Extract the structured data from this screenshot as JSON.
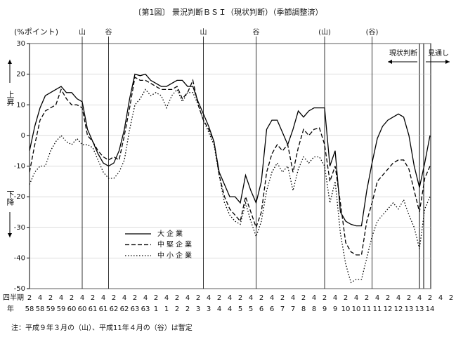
{
  "chart_data": {
    "type": "line",
    "title": "〔第1図〕 景況判断ＢＳＩ（現状判断）（季節調整済）",
    "y_label": "(%ポイント)",
    "up_label": "上昇",
    "down_label": "下降",
    "quarter_row_label": "四半期",
    "year_row_label": "年",
    "current_label": "現状判断",
    "forecast_label": "見通し",
    "note": "注：平成９年３月の（山）、平成11年４月の（谷）は暫定",
    "quarter_labels": [
      "2",
      null,
      "4",
      null,
      "2",
      null,
      "4",
      null,
      "2",
      null,
      "4",
      null,
      "2",
      null,
      "4",
      null,
      "2",
      null,
      "4",
      null,
      "2",
      null,
      "4",
      null,
      "2",
      null,
      "4",
      null,
      "2",
      null,
      "4",
      null,
      "2",
      null,
      "4",
      null,
      "2",
      null,
      "4",
      null,
      "2",
      null,
      "4",
      null,
      "2",
      null,
      "4",
      null,
      "2",
      null,
      "4",
      null,
      "2",
      null,
      "4",
      null,
      "2",
      null,
      "4",
      null,
      "2",
      null,
      "4",
      null,
      "2",
      null,
      "4",
      null,
      "2",
      null,
      "4",
      null,
      "2",
      null,
      "4",
      null,
      "2",
      null,
      "4",
      null,
      "2"
    ],
    "year_labels": [
      "58",
      null,
      "58",
      null,
      "59",
      null,
      "59",
      null,
      "60",
      null,
      "60",
      null,
      "61",
      null,
      "61",
      null,
      "62",
      null,
      "62",
      null,
      "63",
      null,
      "63",
      null,
      "1",
      null,
      "1",
      null,
      "2",
      null,
      "2",
      null,
      "3",
      null,
      "3",
      null,
      "4",
      null,
      "4",
      null,
      "5",
      null,
      "5",
      null,
      "6",
      null,
      "6",
      null,
      "7",
      null,
      "7",
      null,
      "8",
      null,
      "8",
      null,
      "9",
      null,
      "9",
      null,
      "10",
      null,
      "10",
      null,
      "11",
      null,
      "11",
      null,
      "12",
      null,
      "12",
      null,
      "13",
      null,
      "13",
      null,
      "14"
    ],
    "annotations": [
      {
        "text": "山",
        "x": 10
      },
      {
        "text": "谷",
        "x": 15
      },
      {
        "text": "山",
        "x": 33
      },
      {
        "text": "谷",
        "x": 43
      },
      {
        "text": "(山)",
        "x": 56
      },
      {
        "text": "(谷)",
        "x": 65
      }
    ],
    "ylim": [
      -50,
      30
    ],
    "yticks": [
      -50,
      -40,
      -30,
      -20,
      -10,
      0,
      10,
      20,
      30
    ],
    "grid": true,
    "series": [
      {
        "name": "大企業",
        "color": "#000000",
        "line_style": "solid",
        "values": [
          -5,
          3,
          9,
          13,
          14,
          15,
          16,
          14,
          14,
          12,
          11,
          2,
          -2,
          -6,
          -9,
          -10,
          -9,
          -5,
          2,
          12,
          20,
          19.5,
          20,
          18,
          17,
          16,
          16,
          17,
          18,
          18,
          16,
          16,
          11,
          7,
          3,
          -2,
          -12,
          -16,
          -20,
          -20,
          -22,
          -13,
          -18,
          -22,
          -15,
          2,
          5,
          5,
          1,
          -3,
          2,
          8,
          6,
          8,
          9,
          9,
          9,
          -10,
          -5,
          -25,
          -28,
          -29,
          -29.5,
          -29.5,
          -18,
          -9,
          -1,
          3,
          5,
          6,
          7,
          6,
          0,
          -10,
          -17,
          -9,
          0
        ]
      },
      {
        "name": "中堅企業",
        "color": "#000000",
        "line_style": "dashed",
        "values": [
          -12,
          -3,
          5,
          8,
          9,
          10,
          15,
          12,
          10,
          10,
          9,
          0,
          -2,
          -5,
          -7,
          -8,
          -7,
          -8,
          0,
          9,
          19,
          18,
          18,
          17,
          16,
          15,
          15,
          15,
          16,
          12,
          14,
          18,
          10,
          5,
          2,
          -2,
          -13,
          -20,
          -24,
          -26,
          -28,
          -20,
          -25,
          -30,
          -25,
          -12,
          -6,
          -3,
          -5,
          -3,
          -12,
          -4,
          2,
          0,
          2,
          2.5,
          -3,
          -15,
          -10,
          -22,
          -35,
          -38,
          -39,
          -39,
          -28,
          -22,
          -15,
          -13,
          -11,
          -9,
          -8,
          -8,
          -11,
          -18,
          -25,
          -14,
          -10
        ]
      },
      {
        "name": "中小企業",
        "color": "#000000",
        "line_style": "dotted",
        "values": [
          -16,
          -12,
          -10,
          -10,
          -5,
          -2,
          0,
          -2,
          -3,
          -1,
          -3,
          -3,
          -4,
          -8,
          -12,
          -14,
          -14,
          -12,
          -8,
          2,
          10,
          12,
          15,
          13,
          14,
          13,
          9,
          13,
          15,
          11,
          14,
          14,
          10,
          5,
          1,
          -3,
          -13,
          -22,
          -26,
          -28,
          -29,
          -22,
          -28,
          -33,
          -28,
          -18,
          -12,
          -9,
          -12,
          -10,
          -18,
          -11,
          -7,
          -9,
          -7,
          -7,
          -10,
          -22,
          -15,
          -32,
          -42,
          -48,
          -47,
          -47,
          -40,
          -33,
          -28,
          -26,
          -24,
          -22,
          -24,
          -21,
          -26,
          -30,
          -37,
          -24,
          -20
        ]
      }
    ]
  }
}
